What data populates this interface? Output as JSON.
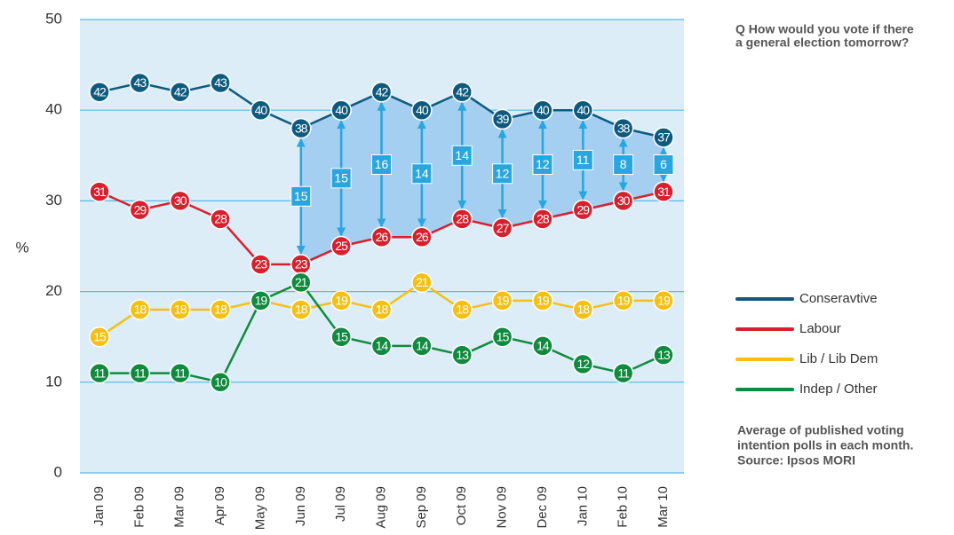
{
  "chart_data": {
    "type": "line",
    "y_label": "%",
    "categories": [
      "Jan 09",
      "Feb 09",
      "Mar 09",
      "Apr 09",
      "May 09",
      "Jun 09",
      "Jul 09",
      "Aug 09",
      "Sep 09",
      "Oct 09",
      "Nov 09",
      "Dec 09",
      "Jan 10",
      "Feb 10",
      "Mar 10"
    ],
    "series": [
      {
        "name": "Conseravtive",
        "color": "#0e5a7e",
        "values": [
          42,
          43,
          42,
          43,
          40,
          38,
          40,
          42,
          40,
          42,
          39,
          40,
          40,
          38,
          37
        ]
      },
      {
        "name": "Labour",
        "color": "#d7202e",
        "values": [
          31,
          29,
          30,
          28,
          23,
          23,
          25,
          26,
          26,
          28,
          27,
          28,
          29,
          30,
          31
        ]
      },
      {
        "name": "Lib / Lib Dem",
        "color": "#f5c016",
        "values": [
          15,
          18,
          18,
          18,
          19,
          18,
          19,
          18,
          21,
          18,
          19,
          19,
          18,
          19,
          19
        ]
      },
      {
        "name": "Indep / Other",
        "color": "#108a3e",
        "values": [
          11,
          11,
          11,
          10,
          19,
          21,
          15,
          14,
          14,
          13,
          15,
          14,
          12,
          11,
          13
        ]
      }
    ],
    "gaps": {
      "color": "#2aa6df",
      "values": [
        null,
        null,
        null,
        null,
        null,
        15,
        15,
        16,
        14,
        14,
        12,
        12,
        11,
        8,
        6
      ]
    },
    "ylim": [
      0,
      50
    ],
    "yticks": [
      0,
      10,
      20,
      30,
      40,
      50
    ],
    "grid": true,
    "question": [
      "Q How would you vote if there",
      "a general election tomorrow?"
    ],
    "note": [
      "Average of published voting",
      "intention polls in each month.",
      "Source: Ipsos MORI"
    ]
  }
}
